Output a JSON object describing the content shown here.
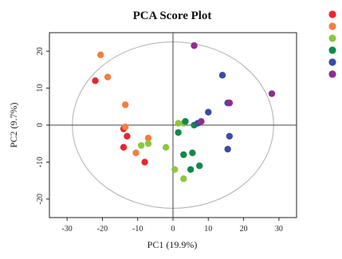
{
  "chart_data": {
    "type": "scatter",
    "title": "PCA Score Plot",
    "xlabel": "PC1 (19.9%)",
    "ylabel": "PC2 (9.7%)",
    "xlim": [
      -35,
      35
    ],
    "ylim": [
      -25,
      25
    ],
    "xticks": [
      -30,
      -20,
      -10,
      0,
      10,
      20,
      30
    ],
    "yticks": [
      20,
      10,
      0,
      -10,
      -20
    ],
    "grid": false,
    "reference_lines": {
      "x": 0,
      "y": 0
    },
    "confidence_ellipse": {
      "center": [
        0,
        0
      ],
      "semi_axes": [
        28.5,
        22.5
      ],
      "color": "#b0b0b0"
    },
    "legend": {
      "placement": "right",
      "labels_visible": false
    },
    "series": [
      {
        "color": "#e8262e",
        "points": [
          [
            -22,
            12
          ],
          [
            -14,
            -1
          ],
          [
            -13,
            -3
          ],
          [
            -14,
            -6
          ],
          [
            -8,
            -10
          ]
        ]
      },
      {
        "color": "#f47e3e",
        "points": [
          [
            -20.5,
            19
          ],
          [
            -18.5,
            13
          ],
          [
            -13.5,
            5.5
          ],
          [
            -13.5,
            -0.5
          ],
          [
            -10.5,
            -7.5
          ],
          [
            -7,
            -3.5
          ]
        ]
      },
      {
        "color": "#8ec63f",
        "points": [
          [
            -9,
            -5.5
          ],
          [
            -7,
            -5
          ],
          [
            -2,
            -6
          ],
          [
            1.5,
            0.5
          ],
          [
            3,
            0.5
          ],
          [
            0.5,
            -12
          ],
          [
            3,
            -14.5
          ]
        ]
      },
      {
        "color": "#0f8a4a",
        "points": [
          [
            3.5,
            1
          ],
          [
            6,
            0
          ],
          [
            1.5,
            -2
          ],
          [
            3,
            -8
          ],
          [
            5.5,
            -7.5
          ],
          [
            5,
            -12
          ],
          [
            7.5,
            -11
          ]
        ]
      },
      {
        "color": "#3b4ba6",
        "points": [
          [
            7,
            0.5
          ],
          [
            10,
            3.5
          ],
          [
            14,
            13.5
          ],
          [
            15.5,
            6
          ],
          [
            16,
            6
          ],
          [
            16,
            -3
          ],
          [
            15.5,
            -6.5
          ]
        ]
      },
      {
        "color": "#922b8f",
        "points": [
          [
            6,
            21.5
          ],
          [
            8,
            1
          ],
          [
            16,
            6
          ],
          [
            28,
            8.5
          ]
        ]
      }
    ]
  }
}
